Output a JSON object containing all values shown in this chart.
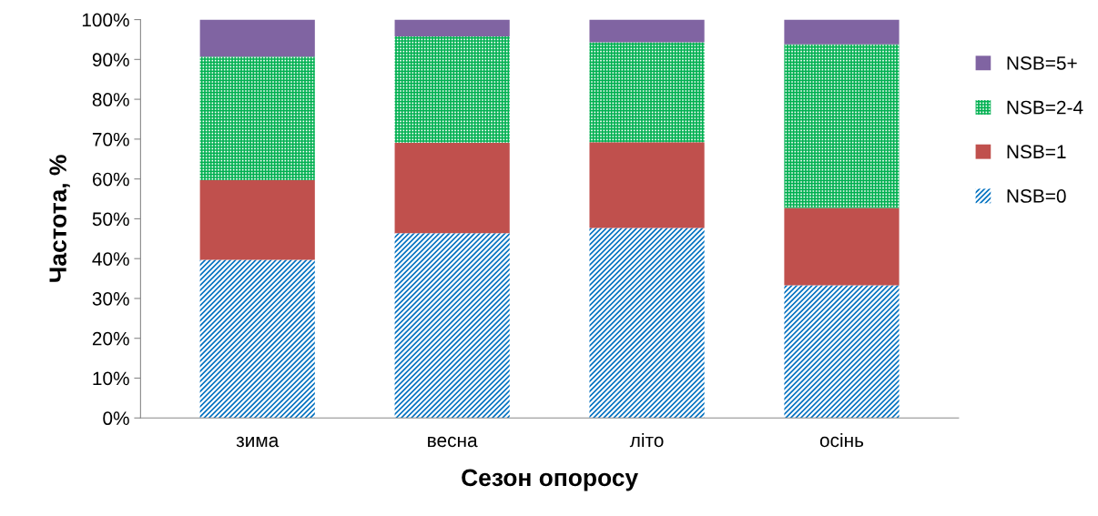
{
  "chart_data": {
    "type": "bar",
    "stacked": true,
    "xlabel": "Сезон опоросу",
    "ylabel": "Частота, %",
    "categories": [
      "зима",
      "весна",
      "літо",
      "осінь"
    ],
    "series": [
      {
        "name": "NSB=0",
        "color": "#0070c0",
        "values": [
          39.7,
          46.4,
          47.7,
          33.3
        ]
      },
      {
        "name": "NSB=1",
        "color": "#c0504d",
        "values": [
          20.0,
          22.7,
          21.5,
          19.4
        ]
      },
      {
        "name": "NSB=2-4",
        "color": "#00b050",
        "values": [
          31.0,
          26.7,
          25.1,
          41.1
        ]
      },
      {
        "name": "NSB=5+",
        "color": "#8064a2",
        "values": [
          9.3,
          4.2,
          5.7,
          6.2
        ]
      }
    ],
    "ylim": [
      0,
      100
    ],
    "yticks": [
      {
        "value": 0,
        "label": "0%"
      },
      {
        "value": 10,
        "label": "10%"
      },
      {
        "value": 20,
        "label": "20%"
      },
      {
        "value": 30,
        "label": "30%"
      },
      {
        "value": 40,
        "label": "40%"
      },
      {
        "value": 50,
        "label": "50%"
      },
      {
        "value": 60,
        "label": "60%"
      },
      {
        "value": 70,
        "label": "70%"
      },
      {
        "value": 80,
        "label": "80%"
      },
      {
        "value": 90,
        "label": "90%"
      },
      {
        "value": 100,
        "label": "100%"
      }
    ],
    "grid": false,
    "legend": "right"
  }
}
